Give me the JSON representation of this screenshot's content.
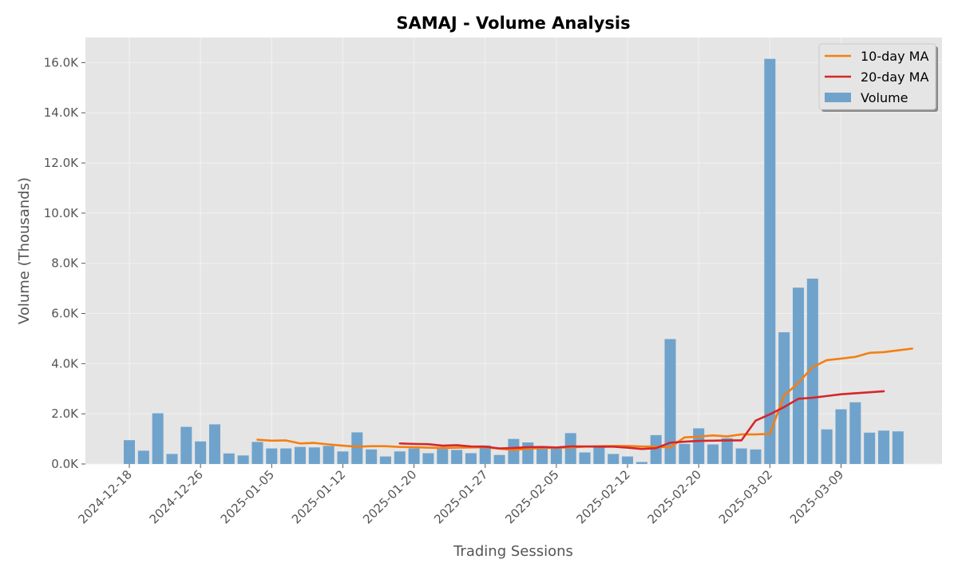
{
  "chart_data": {
    "type": "bar",
    "title": "SAMAJ - Volume Analysis",
    "xlabel": "Trading Sessions",
    "ylabel": "Volume (Thousands)",
    "ylim": [
      0,
      17000
    ],
    "yticks": [
      0,
      2000,
      4000,
      6000,
      8000,
      10000,
      12000,
      14000,
      16000
    ],
    "ytick_labels": [
      "0.0K",
      "2.0K",
      "4.0K",
      "6.0K",
      "8.0K",
      "10.0K",
      "12.0K",
      "14.0K",
      "16.0K"
    ],
    "grid": true,
    "legend_position": "top-right",
    "x_tick_labels": [
      {
        "index": 0,
        "label": "2024-12-18"
      },
      {
        "index": 5,
        "label": "2024-12-26"
      },
      {
        "index": 10,
        "label": "2025-01-05"
      },
      {
        "index": 15,
        "label": "2025-01-12"
      },
      {
        "index": 20,
        "label": "2025-01-20"
      },
      {
        "index": 25,
        "label": "2025-01-27"
      },
      {
        "index": 30,
        "label": "2025-02-05"
      },
      {
        "index": 35,
        "label": "2025-02-12"
      },
      {
        "index": 40,
        "label": "2025-02-20"
      },
      {
        "index": 45,
        "label": "2025-03-02"
      },
      {
        "index": 50,
        "label": "2025-03-09"
      }
    ],
    "series": [
      {
        "name": "Volume",
        "kind": "bar",
        "color": "#6fa3cc",
        "values": [
          950,
          530,
          2020,
          400,
          1480,
          900,
          1580,
          420,
          340,
          880,
          620,
          620,
          680,
          660,
          720,
          500,
          1260,
          580,
          300,
          500,
          620,
          430,
          600,
          560,
          430,
          740,
          360,
          1000,
          860,
          650,
          700,
          1230,
          460,
          740,
          400,
          300,
          80,
          1150,
          4980,
          800,
          1420,
          780,
          1030,
          620,
          580,
          16150,
          5250,
          7030,
          7390,
          1380,
          2180,
          2460,
          1250,
          1330,
          1300
        ]
      },
      {
        "name": "10-day MA",
        "kind": "line",
        "color": "#f47f12",
        "start_index": 9,
        "values": [
          970,
          930,
          940,
          820,
          840,
          780,
          730,
          690,
          710,
          710,
          680,
          670,
          650,
          640,
          650,
          660,
          670,
          610,
          560,
          610,
          640,
          650,
          660,
          690,
          710,
          720,
          720,
          700,
          690,
          660,
          1060,
          1090,
          1140,
          1100,
          1180,
          1180,
          1200,
          2720,
          3240,
          3860,
          4140,
          4200,
          4270,
          4430,
          4460,
          4530,
          4600
        ]
      },
      {
        "name": "20-day MA",
        "kind": "line",
        "color": "#d62728",
        "start_index": 19,
        "values": [
          820,
          800,
          790,
          730,
          750,
          700,
          690,
          620,
          640,
          670,
          680,
          660,
          700,
          700,
          690,
          690,
          650,
          600,
          630,
          850,
          890,
          920,
          930,
          940,
          940,
          1730,
          1980,
          2270,
          2600,
          2640,
          2710,
          2780,
          2820,
          2860,
          2900
        ]
      }
    ]
  }
}
